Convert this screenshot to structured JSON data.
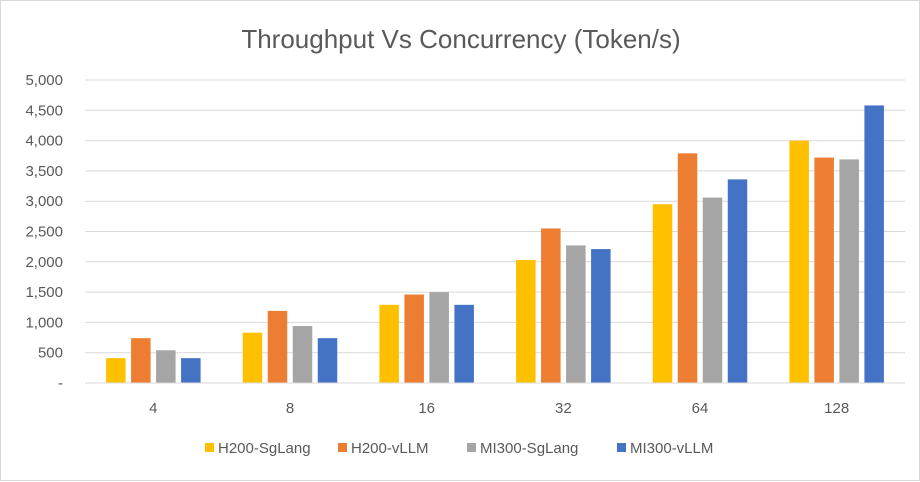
{
  "chart_data": {
    "type": "bar",
    "title": "Throughput Vs Concurrency (Token/s)",
    "xlabel": "",
    "ylabel": "",
    "categories": [
      "4",
      "8",
      "16",
      "32",
      "64",
      "128"
    ],
    "ylim": [
      0,
      5000
    ],
    "y_ticks": [
      0,
      500,
      1000,
      1500,
      2000,
      2500,
      3000,
      3500,
      4000,
      4500,
      5000
    ],
    "y_tick_labels": [
      "-",
      "500",
      "1,000",
      "1,500",
      "2,000",
      "2,500",
      "3,000",
      "3,500",
      "4,000",
      "4,500",
      "5,000"
    ],
    "grid": true,
    "legend_position": "bottom",
    "series": [
      {
        "name": "H200-SgLang",
        "color": "#FFC000",
        "values": [
          410,
          830,
          1290,
          2030,
          2950,
          4000
        ]
      },
      {
        "name": "H200-vLLM",
        "color": "#ED7D31",
        "values": [
          740,
          1190,
          1460,
          2550,
          3790,
          3720
        ]
      },
      {
        "name": "MI300-SgLang",
        "color": "#A5A5A5",
        "values": [
          540,
          940,
          1500,
          2270,
          3060,
          3690
        ]
      },
      {
        "name": "MI300-vLLM",
        "color": "#4472C4",
        "values": [
          410,
          740,
          1290,
          2210,
          3360,
          4580
        ]
      }
    ]
  }
}
